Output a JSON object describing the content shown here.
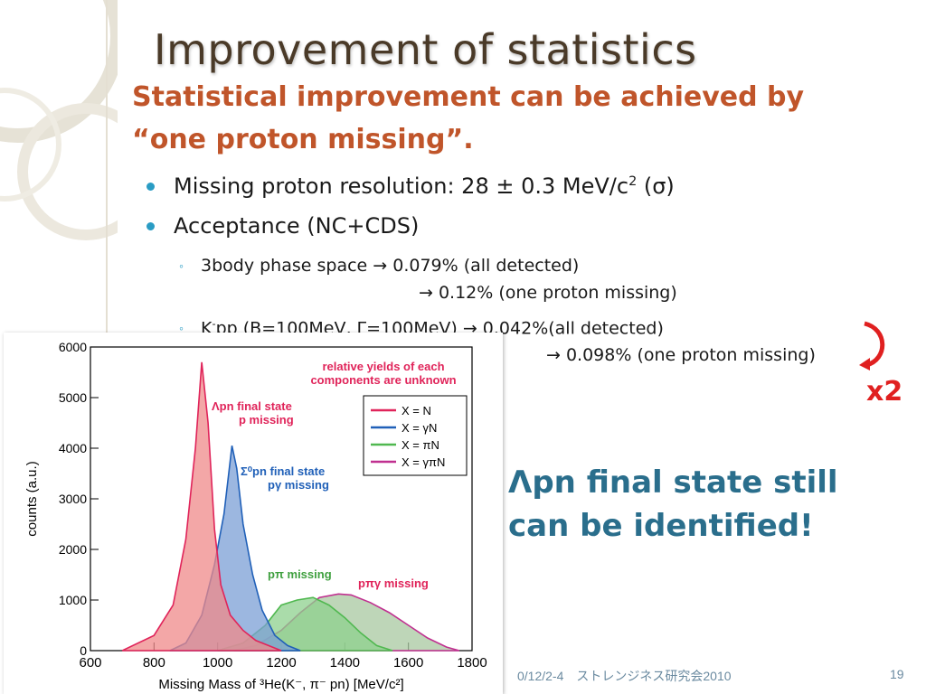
{
  "slide": {
    "title": "Improvement of statistics",
    "subtitle_line1": "Statistical improvement can be achieved by",
    "subtitle_line2": "“one proton missing”.",
    "bullet1": {
      "pre": "Missing proton resolution: 28 ± 0.3 MeV/c",
      "sup": "2",
      "post": " (σ)"
    },
    "bullet2": "Acceptance (NC+CDS)",
    "sub1": {
      "line1": "3body phase space → 0.079% (all detected)",
      "line2": "→ 0.12% (one proton missing)"
    },
    "sub2": {
      "pre": "K",
      "sup": "-",
      "line1": "pp (B=100MeV, Γ=100MeV) → 0.042%(all detected)",
      "line2": "→ 0.098% (one proton missing)"
    },
    "x2_label": "x2",
    "callout_line1": "Λpn final state still",
    "callout_line2": "can be identified!",
    "footer_date": "0/12/2-4　ストレンジネス研究会2010",
    "footer_page": "19",
    "colors": {
      "title": "#4a3a28",
      "subtitle": "#c0552a",
      "bullet": "#2a9cc4",
      "callout": "#2a6e8c",
      "x2": "#e02020"
    }
  },
  "chart_data": {
    "type": "area",
    "xlabel": "Missing Mass of ³He(K⁻, π⁻ pn) [MeV/c²]",
    "ylabel": "counts (a.u.)",
    "xlim": [
      600,
      1800
    ],
    "ylim": [
      0,
      6000
    ],
    "xticks": [
      600,
      800,
      1000,
      1200,
      1400,
      1600,
      1800
    ],
    "yticks": [
      0,
      1000,
      2000,
      3000,
      4000,
      5000,
      6000
    ],
    "legend_position": "top-right",
    "annotation_top": [
      "relative yields of each",
      "components are unknown"
    ],
    "series": [
      {
        "name": "X = N",
        "color": "#e0245a",
        "fill": "#ef8a8a",
        "x": [
          700,
          800,
          860,
          900,
          930,
          950,
          970,
          990,
          1010,
          1040,
          1080,
          1120,
          1160,
          1200
        ],
        "y": [
          0,
          300,
          900,
          2200,
          4000,
          5700,
          4500,
          2400,
          1300,
          700,
          400,
          200,
          100,
          0
        ],
        "label_lines": [
          "Λpn final state",
          "p missing"
        ]
      },
      {
        "name": "X = γN",
        "color": "#2060b8",
        "fill": "#7b9fd6",
        "x": [
          850,
          900,
          950,
          990,
          1020,
          1045,
          1060,
          1080,
          1110,
          1140,
          1180,
          1220,
          1260
        ],
        "y": [
          0,
          150,
          700,
          1700,
          2700,
          4050,
          3600,
          2500,
          1500,
          800,
          300,
          100,
          0
        ],
        "label_lines": [
          "Σ⁰pn final state",
          "pγ missing"
        ]
      },
      {
        "name": "X = πN",
        "color": "#50b850",
        "fill": "#8ed08e",
        "x": [
          1000,
          1080,
          1150,
          1200,
          1250,
          1300,
          1350,
          1400,
          1450,
          1500,
          1550
        ],
        "y": [
          0,
          150,
          500,
          900,
          1000,
          1050,
          900,
          650,
          350,
          100,
          0
        ],
        "label_lines": [
          "pπ missing"
        ]
      },
      {
        "name": "X = γπN",
        "color": "#c03090",
        "fill": "#a8c8a0",
        "x": [
          1050,
          1120,
          1200,
          1260,
          1320,
          1380,
          1420,
          1480,
          1540,
          1600,
          1660,
          1720,
          1760
        ],
        "y": [
          0,
          100,
          400,
          750,
          1050,
          1120,
          1100,
          950,
          750,
          500,
          250,
          70,
          0
        ],
        "label_lines": [
          "pπγ missing"
        ]
      }
    ]
  }
}
